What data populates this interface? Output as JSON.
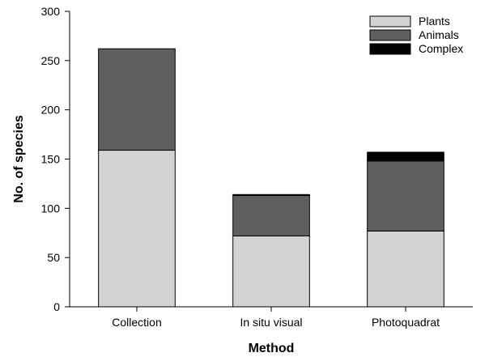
{
  "chart_data": {
    "type": "bar",
    "stacked": true,
    "xlabel": "Method",
    "ylabel": "No. of species",
    "ylim": [
      0,
      300
    ],
    "yticks": [
      0,
      50,
      100,
      150,
      200,
      250,
      300
    ],
    "categories": [
      "Collection",
      "In situ visual",
      "Photoquadrat"
    ],
    "series": [
      {
        "name": "Plants",
        "values": [
          159,
          72,
          77
        ],
        "color": "#d3d3d3"
      },
      {
        "name": "Animals",
        "values": [
          103,
          41,
          71
        ],
        "color": "#5f5f5f"
      },
      {
        "name": "Complex",
        "values": [
          0,
          1,
          9
        ],
        "color": "#000000"
      }
    ],
    "grid": false,
    "legend_position": "top-right"
  }
}
